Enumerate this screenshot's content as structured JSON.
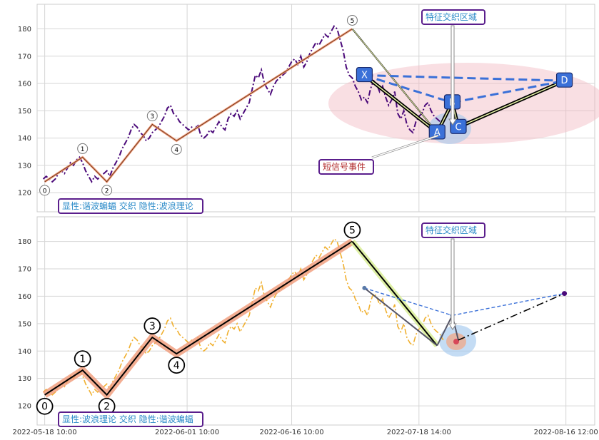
{
  "chart_data": [
    {
      "type": "line",
      "panel": "top",
      "ylim": [
        113,
        189
      ],
      "yticks": [
        120,
        130,
        140,
        150,
        160,
        170,
        180
      ],
      "legend_box": "显性:谐波蝙蝠 交织 隐性:波浪理论",
      "annotation_zone": "特征交织区域",
      "annotation_event": "短信号事件",
      "wave_points": [
        {
          "label": "0",
          "x": 0.5,
          "y": 124
        },
        {
          "label": "1",
          "x": 13,
          "y": 133
        },
        {
          "label": "2",
          "x": 21,
          "y": 124
        },
        {
          "label": "3",
          "x": 36,
          "y": 145
        },
        {
          "label": "4",
          "x": 44,
          "y": 139
        },
        {
          "label": "5",
          "x": 102,
          "y": 180
        }
      ],
      "harmonic_points": [
        {
          "label": "X",
          "x": 106,
          "y": 163
        },
        {
          "label": "A",
          "x": 130,
          "y": 142
        },
        {
          "label": "B",
          "x": 135,
          "y": 153
        },
        {
          "label": "C",
          "x": 137,
          "y": 144
        },
        {
          "label": "D",
          "x": 172,
          "y": 161
        }
      ]
    },
    {
      "type": "line",
      "panel": "bottom",
      "ylim": [
        113,
        189
      ],
      "yticks": [
        120,
        130,
        140,
        150,
        160,
        170,
        180
      ],
      "legend_box": "显性:波浪理论 交织 隐性:谐波蝙蝠",
      "annotation_zone": "特征交织区域",
      "xticks": [
        "2022-05-18 10:00",
        "2022-06-01 10:00",
        "2022-06-16 10:00",
        "2022-07-18 14:00",
        "2022-08-16 12:00"
      ],
      "wave_points": [
        {
          "label": "0",
          "x": 0.5,
          "y": 124
        },
        {
          "label": "1",
          "x": 13,
          "y": 133
        },
        {
          "label": "2",
          "x": 21,
          "y": 124
        },
        {
          "label": "3",
          "x": 36,
          "y": 145
        },
        {
          "label": "4",
          "x": 44,
          "y": 139
        },
        {
          "label": "5",
          "x": 102,
          "y": 180
        }
      ],
      "harmonic_points": [
        {
          "x": 106,
          "y": 163
        },
        {
          "x": 130,
          "y": 142
        },
        {
          "x": 135,
          "y": 153
        },
        {
          "x": 137,
          "y": 144
        },
        {
          "x": 172,
          "y": 161
        }
      ]
    }
  ],
  "price_series": [
    125,
    126,
    125,
    124,
    125,
    127,
    128,
    127,
    129,
    131,
    130,
    132,
    133,
    131,
    128,
    126,
    124,
    126,
    125,
    126,
    127,
    128,
    126,
    129,
    131,
    133,
    136,
    138,
    140,
    143,
    145,
    144,
    142,
    141,
    139,
    140,
    142,
    143,
    144,
    146,
    148,
    151,
    152,
    149,
    148,
    146,
    145,
    144,
    143,
    144,
    143,
    145,
    141,
    140,
    141,
    143,
    142,
    144,
    146,
    144,
    143,
    147,
    149,
    148,
    150,
    147,
    149,
    151,
    153,
    158,
    163,
    162,
    165,
    160,
    158,
    156,
    159,
    161,
    162,
    163,
    164,
    166,
    168,
    169,
    167,
    170,
    166,
    168,
    171,
    173,
    175,
    174,
    176,
    178,
    177,
    179,
    181,
    180,
    176,
    172,
    166,
    163,
    162,
    159,
    157,
    154,
    155,
    153,
    158,
    161,
    160,
    157,
    159,
    155,
    152,
    154,
    157,
    149,
    147,
    150,
    145,
    143,
    142,
    146,
    148,
    149,
    152,
    153,
    150,
    148,
    147,
    146,
    144
  ],
  "colors": {
    "top_price": "#4b0a7a",
    "bottom_price": "#f0b030",
    "harmonic_blue": "#3a70d8",
    "box_border": "#5a1e8c",
    "box_text": "#2a8ac8",
    "event_text": "#b02828",
    "wave_orange": "#f09a78"
  }
}
